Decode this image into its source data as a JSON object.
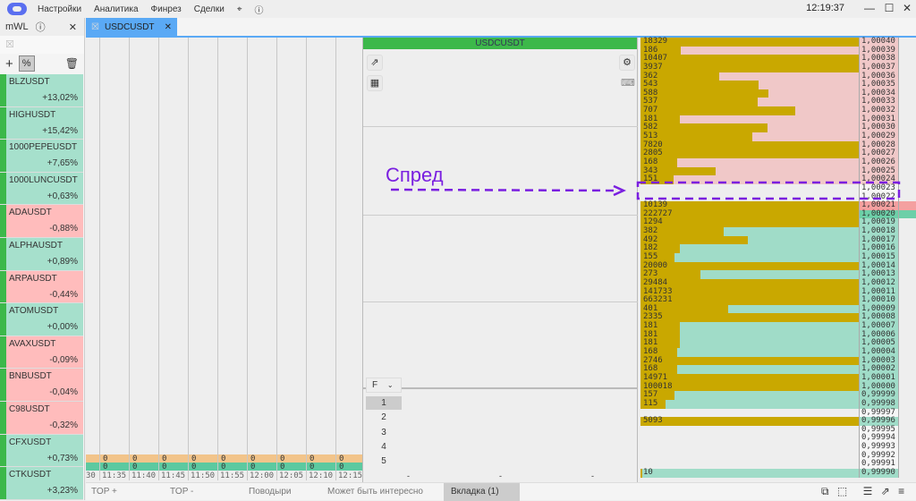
{
  "menu": {
    "items": [
      "Настройки",
      "Аналитика",
      "Финрез",
      "Сделки"
    ],
    "clock": "12:19:37"
  },
  "watchlist": {
    "title": "mWL",
    "items": [
      {
        "name": "BLZUSDT",
        "change": "+13,02%",
        "dir": "up"
      },
      {
        "name": "HIGHUSDT",
        "change": "+15,42%",
        "dir": "up"
      },
      {
        "name": "1000PEPEUSDT",
        "change": "+7,65%",
        "dir": "up"
      },
      {
        "name": "1000LUNCUSDT",
        "change": "+0,63%",
        "dir": "up"
      },
      {
        "name": "ADAUSDT",
        "change": "-0,88%",
        "dir": "dn"
      },
      {
        "name": "ALPHAUSDT",
        "change": "+0,89%",
        "dir": "up"
      },
      {
        "name": "ARPAUSDT",
        "change": "-0,44%",
        "dir": "dn"
      },
      {
        "name": "ATOMUSDT",
        "change": "+0,00%",
        "dir": "up"
      },
      {
        "name": "AVAXUSDT",
        "change": "-0,09%",
        "dir": "dn"
      },
      {
        "name": "BNBUSDT",
        "change": "-0,04%",
        "dir": "dn"
      },
      {
        "name": "C98USDT",
        "change": "-0,32%",
        "dir": "dn"
      },
      {
        "name": "CFXUSDT",
        "change": "+0,73%",
        "dir": "up"
      },
      {
        "name": "CTKUSDT",
        "change": "+3,23%",
        "dir": "up"
      }
    ]
  },
  "tab": {
    "label": "USDCUSDT"
  },
  "chart": {
    "times": [
      "30",
      "11:35",
      "11:40",
      "11:45",
      "11:50",
      "11:55",
      "12:00",
      "12:05",
      "12:10",
      "12:15"
    ],
    "sell_row": "0",
    "buy_row": "0"
  },
  "dom": {
    "title": "USDCUSDT",
    "filter": "F",
    "levels": [
      "1",
      "2",
      "3",
      "4",
      "5"
    ],
    "dashes": [
      "-",
      "-",
      "-"
    ]
  },
  "orderbook": {
    "colors": {
      "ask": "#f0c8c8",
      "bid": "#a0dcc8",
      "volume": "#c9a800",
      "best_ask": "#f4a0a0",
      "best_bid": "#6dcfa8"
    },
    "rows": [
      [
        "1,00040",
        "18329",
        "ask"
      ],
      [
        "1,00039",
        "186",
        "ask"
      ],
      [
        "1,00038",
        "10407",
        "ask"
      ],
      [
        "1,00037",
        "3937",
        "ask"
      ],
      [
        "1,00036",
        "362",
        "ask"
      ],
      [
        "1,00035",
        "543",
        "ask"
      ],
      [
        "1,00034",
        "588",
        "ask"
      ],
      [
        "1,00033",
        "537",
        "ask"
      ],
      [
        "1,00032",
        "707",
        "ask"
      ],
      [
        "1,00031",
        "181",
        "ask"
      ],
      [
        "1,00030",
        "582",
        "ask"
      ],
      [
        "1,00029",
        "513",
        "ask"
      ],
      [
        "1,00028",
        "7820",
        "ask"
      ],
      [
        "1,00027",
        "2805",
        "ask"
      ],
      [
        "1,00026",
        "168",
        "ask"
      ],
      [
        "1,00025",
        "343",
        "ask"
      ],
      [
        "1,00024",
        "151",
        "ask"
      ],
      [
        "1,00023",
        "",
        ""
      ],
      [
        "1,00022",
        "",
        ""
      ],
      [
        "1,00021",
        "10139",
        "best_ask"
      ],
      [
        "1,00020",
        "222727",
        "best_bid"
      ],
      [
        "1,00019",
        "1294",
        "bid"
      ],
      [
        "1,00018",
        "382",
        "bid"
      ],
      [
        "1,00017",
        "492",
        "bid"
      ],
      [
        "1,00016",
        "182",
        "bid"
      ],
      [
        "1,00015",
        "155",
        "bid"
      ],
      [
        "1,00014",
        "20000",
        "bid"
      ],
      [
        "1,00013",
        "273",
        "bid"
      ],
      [
        "1,00012",
        "29484",
        "bid"
      ],
      [
        "1,00011",
        "141733",
        "bid"
      ],
      [
        "1,00010",
        "663231",
        "bid"
      ],
      [
        "1,00009",
        "401",
        "bid"
      ],
      [
        "1,00008",
        "2335",
        "bid"
      ],
      [
        "1,00007",
        "181",
        "bid"
      ],
      [
        "1,00006",
        "181",
        "bid"
      ],
      [
        "1,00005",
        "181",
        "bid"
      ],
      [
        "1,00004",
        "168",
        "bid"
      ],
      [
        "1,00003",
        "2746",
        "bid"
      ],
      [
        "1,00002",
        "168",
        "bid"
      ],
      [
        "1,00001",
        "14971",
        "bid"
      ],
      [
        "1,00000",
        "100018",
        "bid"
      ],
      [
        "0,99999",
        "157",
        "bid"
      ],
      [
        "0,99998",
        "115",
        "bid"
      ],
      [
        "0,99997",
        "",
        ""
      ],
      [
        "0,99996",
        "5093",
        "bid"
      ],
      [
        "0,99995",
        "",
        ""
      ],
      [
        "0,99994",
        "",
        ""
      ],
      [
        "0,99993",
        "",
        ""
      ],
      [
        "0,99992",
        "",
        ""
      ],
      [
        "0,99991",
        "",
        ""
      ],
      [
        "0,99990",
        "10",
        "bid"
      ]
    ]
  },
  "annotation": {
    "label": "Спред",
    "color": "#7a1fe0"
  },
  "bottom_tabs": [
    "TOP +",
    "TOP -",
    "Поводыри",
    "Может быть интересно",
    "Вкладка (1)"
  ]
}
